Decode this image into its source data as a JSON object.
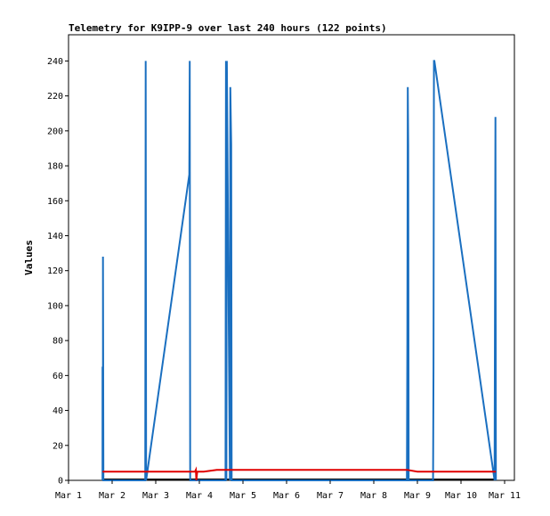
{
  "chart_data": {
    "type": "line",
    "title": "Telemetry for K9IPP-9 over last 240 hours (122 points)",
    "xlabel": "",
    "ylabel": "Values",
    "xlim": [
      0,
      10
    ],
    "ylim": [
      0,
      255
    ],
    "x_ticks": [
      "Mar 1",
      "Mar 2",
      "Mar 3",
      "Mar 4",
      "Mar 5",
      "Mar 6",
      "Mar 7",
      "Mar 8",
      "Mar 9",
      "Mar 10",
      "Mar 11"
    ],
    "y_ticks": [
      0,
      20,
      40,
      60,
      80,
      100,
      120,
      140,
      160,
      180,
      200,
      220,
      240
    ],
    "grid": false,
    "legend": "none",
    "x_unit": "days since Mar 1",
    "series": [
      {
        "color": "#1a6fc0",
        "x": [
          0.78,
          0.78,
          0.79,
          0.79,
          0.8,
          1.76,
          1.77,
          1.78,
          2.77,
          2.78,
          2.79,
          3.6,
          3.61,
          3.62,
          3.63,
          3.7,
          3.71,
          3.72,
          3.73,
          3.74,
          7.76,
          7.77,
          7.78,
          7.79,
          7.8,
          8.36,
          8.37,
          8.38,
          8.39,
          9.77,
          9.78,
          9.79,
          9.8
        ],
        "y": [
          0,
          65,
          0,
          128,
          0,
          0,
          240,
          0,
          175,
          240,
          0,
          0,
          240,
          0,
          240,
          0,
          225,
          208,
          192,
          0,
          0,
          80,
          225,
          192,
          0,
          0,
          65,
          240,
          240,
          0,
          104,
          208,
          0
        ]
      },
      {
        "color": "#e00000",
        "x": [
          0.78,
          2.7,
          2.9,
          2.92,
          2.93,
          2.95,
          3.1,
          3.4,
          3.6,
          4.0,
          5.0,
          6.0,
          7.0,
          7.76,
          8.0,
          8.36,
          9.0,
          9.8
        ],
        "y": [
          5,
          5,
          5,
          6,
          0,
          5,
          5,
          6,
          6,
          6,
          6,
          6,
          6,
          6,
          5,
          5,
          5,
          5
        ]
      }
    ]
  }
}
